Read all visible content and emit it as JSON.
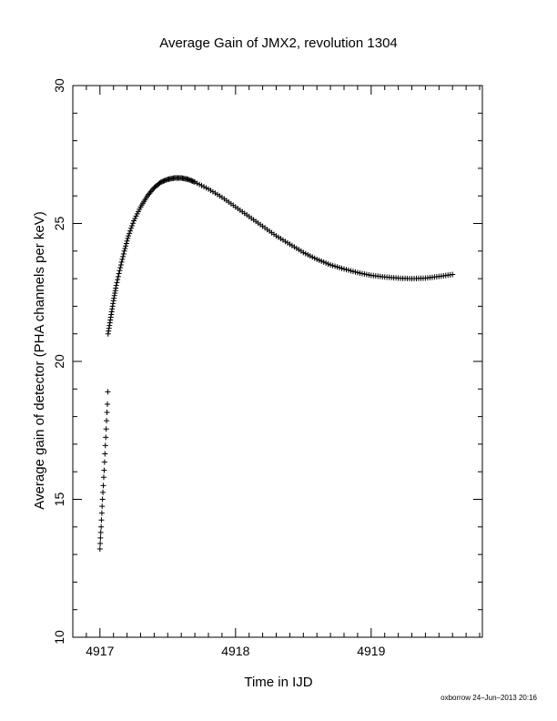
{
  "chart_data": {
    "type": "scatter",
    "title": "Average Gain of JMX2, revolution 1304",
    "xlabel": "Time in IJD",
    "ylabel": "Average gain of detector (PHA channels per keV)",
    "xlim": [
      4916.8,
      4919.82
    ],
    "ylim": [
      10,
      30
    ],
    "xticks": [
      4917,
      4918,
      4919
    ],
    "yticks": [
      10,
      15,
      20,
      25,
      30
    ],
    "grid": false,
    "legend": "none",
    "marker": "plus",
    "series": [
      {
        "points": [
          [
            4917.0,
            13.2
          ],
          [
            4917.002,
            13.4
          ],
          [
            4917.004,
            13.6
          ],
          [
            4917.006,
            13.8
          ],
          [
            4917.009,
            14.0
          ],
          [
            4917.011,
            14.25
          ],
          [
            4917.014,
            14.5
          ],
          [
            4917.016,
            14.75
          ],
          [
            4917.019,
            15.0
          ],
          [
            4917.022,
            15.25
          ],
          [
            4917.025,
            15.5
          ],
          [
            4917.028,
            15.8
          ],
          [
            4917.031,
            16.05
          ],
          [
            4917.034,
            16.35
          ],
          [
            4917.037,
            16.65
          ],
          [
            4917.04,
            16.95
          ],
          [
            4917.043,
            17.25
          ],
          [
            4917.046,
            17.55
          ],
          [
            4917.049,
            17.85
          ],
          [
            4917.052,
            18.15
          ],
          [
            4917.055,
            18.45
          ],
          [
            4917.058,
            18.9
          ],
          [
            4917.06,
            21.0
          ],
          [
            4917.08,
            21.6
          ],
          [
            4917.1,
            22.2
          ],
          [
            4917.12,
            22.75
          ],
          [
            4917.15,
            23.4
          ],
          [
            4917.18,
            24.0
          ],
          [
            4917.21,
            24.55
          ],
          [
            4917.25,
            25.1
          ],
          [
            4917.3,
            25.6
          ],
          [
            4917.35,
            26.0
          ],
          [
            4917.4,
            26.3
          ],
          [
            4917.45,
            26.5
          ],
          [
            4917.5,
            26.6
          ],
          [
            4917.55,
            26.65
          ],
          [
            4917.6,
            26.65
          ],
          [
            4917.65,
            26.6
          ],
          [
            4917.7,
            26.5
          ],
          [
            4917.8,
            26.25
          ],
          [
            4917.9,
            25.95
          ],
          [
            4918.0,
            25.6
          ],
          [
            4918.1,
            25.25
          ],
          [
            4918.2,
            24.9
          ],
          [
            4918.3,
            24.55
          ],
          [
            4918.4,
            24.25
          ],
          [
            4918.5,
            23.95
          ],
          [
            4918.6,
            23.7
          ],
          [
            4918.7,
            23.5
          ],
          [
            4918.8,
            23.35
          ],
          [
            4918.9,
            23.22
          ],
          [
            4919.0,
            23.12
          ],
          [
            4919.1,
            23.06
          ],
          [
            4919.2,
            23.02
          ],
          [
            4919.3,
            23.0
          ],
          [
            4919.4,
            23.02
          ],
          [
            4919.5,
            23.08
          ],
          [
            4919.6,
            23.15
          ]
        ]
      }
    ]
  },
  "footer": {
    "stamp": "oxborrow 24–Jun–2013 20:16"
  }
}
